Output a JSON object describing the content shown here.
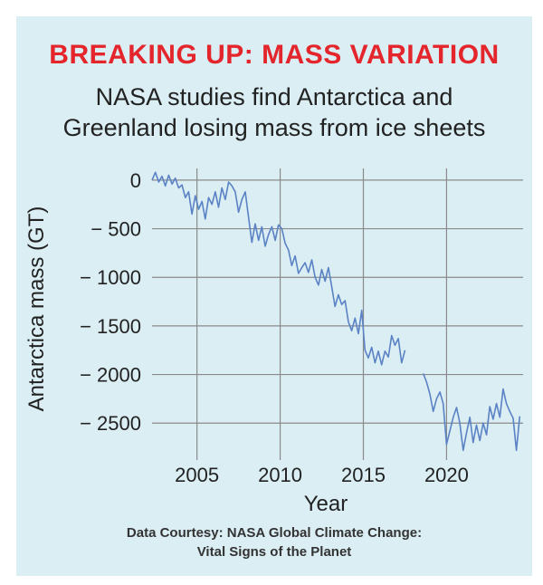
{
  "chart_data": {
    "type": "line",
    "title": "BREAKING UP: MASS VARIATION",
    "subtitle_lines": [
      "NASA studies find Antarctica and",
      "Greenland losing mass from ice sheets"
    ],
    "xlabel": "Year",
    "ylabel": "Antarctica mass (GT)",
    "xlim": [
      2002.3,
      2024.6
    ],
    "ylim": [
      -2880,
      120
    ],
    "x_ticks": [
      2005,
      2010,
      2015,
      2020
    ],
    "x_tick_labels": [
      "2005",
      "2010",
      "2015",
      "2020"
    ],
    "y_ticks": [
      0,
      -500,
      -1000,
      -1500,
      -2000,
      -2500
    ],
    "y_tick_labels": [
      "0",
      "− 500",
      "− 1000",
      "− 1500",
      "− 2000",
      "− 2500"
    ],
    "grid": true,
    "colors": {
      "line": "#5b82c4",
      "grid": "#8a8a8a",
      "title": "#e4262c",
      "background": "#daeef4"
    },
    "series": [
      {
        "segments": [
          [
            [
              2002.3,
              0
            ],
            [
              2002.5,
              80
            ],
            [
              2002.7,
              -20
            ],
            [
              2002.9,
              40
            ],
            [
              2003.1,
              -60
            ],
            [
              2003.3,
              50
            ],
            [
              2003.5,
              -40
            ],
            [
              2003.7,
              20
            ],
            [
              2003.9,
              -80
            ],
            [
              2004.1,
              -50
            ],
            [
              2004.3,
              -180
            ],
            [
              2004.5,
              -120
            ],
            [
              2004.7,
              -350
            ],
            [
              2004.9,
              -160
            ],
            [
              2005.1,
              -300
            ],
            [
              2005.3,
              -220
            ],
            [
              2005.5,
              -400
            ],
            [
              2005.7,
              -180
            ],
            [
              2005.9,
              -250
            ],
            [
              2006.1,
              -120
            ],
            [
              2006.3,
              -280
            ],
            [
              2006.5,
              -80
            ],
            [
              2006.7,
              -200
            ],
            [
              2006.9,
              -20
            ],
            [
              2007.1,
              -60
            ],
            [
              2007.3,
              -120
            ],
            [
              2007.5,
              -330
            ],
            [
              2007.7,
              -200
            ],
            [
              2007.9,
              -120
            ],
            [
              2008.1,
              -380
            ],
            [
              2008.3,
              -640
            ],
            [
              2008.5,
              -450
            ],
            [
              2008.7,
              -620
            ],
            [
              2008.9,
              -480
            ],
            [
              2009.1,
              -680
            ],
            [
              2009.3,
              -560
            ],
            [
              2009.5,
              -480
            ],
            [
              2009.7,
              -620
            ],
            [
              2009.9,
              -460
            ],
            [
              2010.1,
              -500
            ],
            [
              2010.3,
              -650
            ],
            [
              2010.5,
              -720
            ],
            [
              2010.7,
              -880
            ],
            [
              2010.9,
              -780
            ],
            [
              2011.1,
              -960
            ],
            [
              2011.3,
              -900
            ],
            [
              2011.5,
              -850
            ],
            [
              2011.7,
              -950
            ],
            [
              2011.9,
              -820
            ],
            [
              2012.1,
              -1000
            ],
            [
              2012.3,
              -1080
            ],
            [
              2012.5,
              -920
            ],
            [
              2012.7,
              -1040
            ],
            [
              2012.9,
              -900
            ],
            [
              2013.1,
              -1100
            ],
            [
              2013.3,
              -1300
            ],
            [
              2013.5,
              -1180
            ],
            [
              2013.7,
              -1280
            ],
            [
              2013.9,
              -1240
            ],
            [
              2014.1,
              -1460
            ],
            [
              2014.3,
              -1550
            ],
            [
              2014.5,
              -1420
            ],
            [
              2014.7,
              -1580
            ],
            [
              2014.9,
              -1340
            ],
            [
              2015.1,
              -1750
            ],
            [
              2015.3,
              -1830
            ],
            [
              2015.5,
              -1720
            ],
            [
              2015.7,
              -1880
            ],
            [
              2015.9,
              -1760
            ],
            [
              2016.1,
              -1900
            ],
            [
              2016.3,
              -1760
            ],
            [
              2016.5,
              -1820
            ],
            [
              2016.7,
              -1600
            ],
            [
              2016.9,
              -1700
            ],
            [
              2017.1,
              -1630
            ],
            [
              2017.3,
              -1880
            ],
            [
              2017.5,
              -1750
            ]
          ],
          [
            [
              2018.6,
              -1990
            ],
            [
              2018.8,
              -2080
            ],
            [
              2019.0,
              -2200
            ],
            [
              2019.2,
              -2380
            ],
            [
              2019.4,
              -2250
            ],
            [
              2019.6,
              -2180
            ],
            [
              2019.8,
              -2300
            ],
            [
              2020.0,
              -2720
            ],
            [
              2020.2,
              -2580
            ],
            [
              2020.4,
              -2440
            ],
            [
              2020.6,
              -2340
            ],
            [
              2020.8,
              -2500
            ],
            [
              2021.0,
              -2780
            ],
            [
              2021.2,
              -2600
            ],
            [
              2021.4,
              -2440
            ],
            [
              2021.6,
              -2700
            ],
            [
              2021.8,
              -2520
            ],
            [
              2022.0,
              -2680
            ],
            [
              2022.2,
              -2500
            ],
            [
              2022.4,
              -2620
            ],
            [
              2022.6,
              -2330
            ],
            [
              2022.8,
              -2460
            ],
            [
              2023.0,
              -2300
            ],
            [
              2023.2,
              -2440
            ],
            [
              2023.4,
              -2150
            ],
            [
              2023.6,
              -2300
            ],
            [
              2023.8,
              -2380
            ],
            [
              2024.0,
              -2450
            ],
            [
              2024.2,
              -2780
            ],
            [
              2024.4,
              -2430
            ]
          ]
        ]
      }
    ]
  },
  "footer": {
    "source_lines": [
      "Data Courtesy: NASA Global Climate Change:",
      "Vital Signs of the Planet"
    ]
  }
}
